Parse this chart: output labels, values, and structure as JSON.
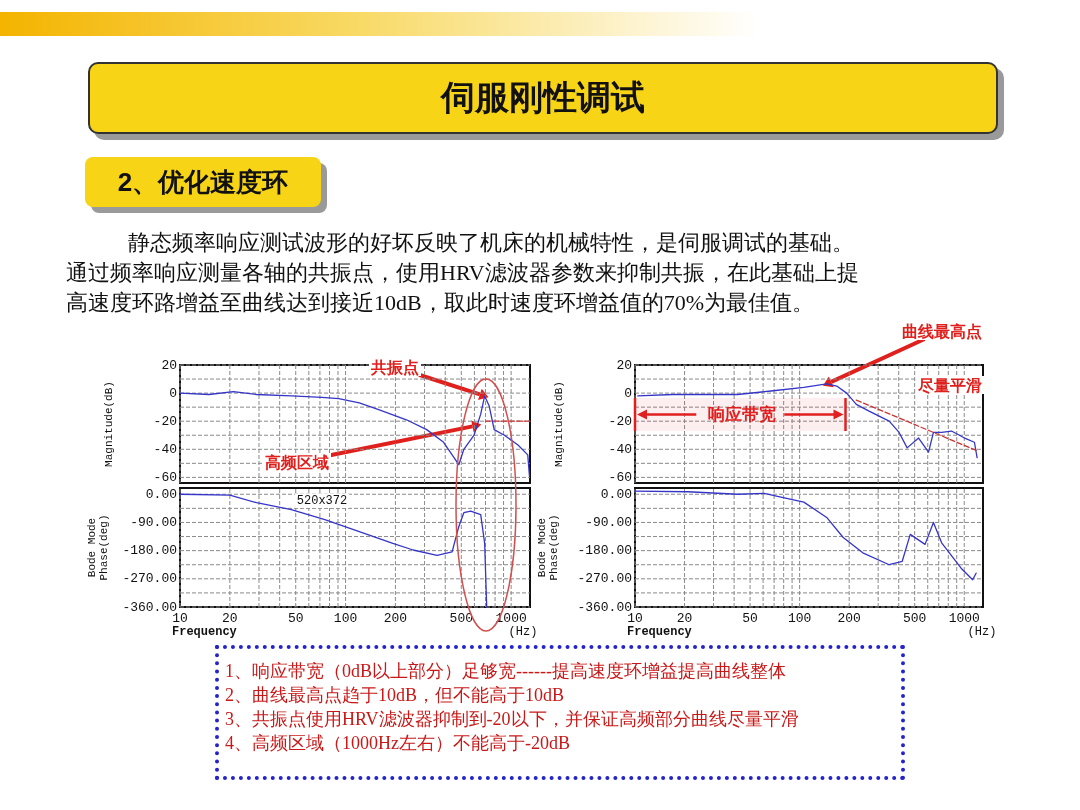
{
  "chart_data": [
    {
      "type": "other",
      "title": "伺服刚性调试",
      "subtitle": "2、优化速度环",
      "annotations": [
        "静态频率响应测试波形的好坏反映了机床的机械特性，是伺服调试的基础。",
        "通过频率响应测量各轴的共振点，使用HRV滤波器参数来抑制共振，在此基础上提",
        "高速度环路增益至曲线达到接近10dB，取此时速度环增益值的70%为最佳值。"
      ]
    },
    {
      "type": "line",
      "ylabel": "Magnitude(dB)",
      "log": "x",
      "grid": true,
      "marker": "none",
      "tick_labels": "y",
      "xlim": [
        10,
        1300
      ],
      "ylim": [
        -64,
        20
      ],
      "xticks": [
        10,
        20,
        {
          "value": 30,
          "label": null
        },
        {
          "value": 40,
          "label": null
        },
        50,
        {
          "value": 60,
          "label": null
        },
        {
          "value": 70,
          "label": null
        },
        {
          "value": 80,
          "label": null
        },
        {
          "value": 90,
          "label": null
        },
        100,
        200,
        {
          "value": 300,
          "label": null
        },
        {
          "value": 400,
          "label": null
        },
        500,
        {
          "value": 600,
          "label": null
        },
        {
          "value": 700,
          "label": null
        },
        {
          "value": 800,
          "label": null
        },
        {
          "value": 900,
          "label": null
        },
        1000
      ],
      "yticks": [
        -60,
        {
          "value": -50,
          "label": null
        },
        -40,
        {
          "value": -30,
          "label": null
        },
        -20,
        {
          "value": -10,
          "label": null
        },
        0,
        {
          "value": 10,
          "label": null
        },
        20
      ],
      "x": [
        10,
        15,
        21,
        29,
        47,
        72,
        91,
        121,
        160,
        233,
        309,
        391,
        483,
        518,
        597,
        655,
        692,
        736,
        790,
        910,
        1100,
        1260,
        1290
      ],
      "series": [
        {
          "color": "#3535c8",
          "values": [
            0,
            -1,
            1,
            -1,
            -2,
            -3,
            -4,
            -7,
            -12,
            -19,
            -26,
            -35,
            -51,
            -40,
            -30,
            -15,
            -2,
            -9,
            -26,
            -30,
            -37,
            -44,
            -59
          ]
        },
        {
          "type": "line",
          "color": "#cc3333",
          "line_style": "dashed",
          "x": [
            703,
            1300
          ],
          "values": [
            -20,
            -20
          ]
        }
      ],
      "annotations": [
        {
          "text": "共振点",
          "x": 692,
          "y": -2
        },
        {
          "text": "高频区域",
          "x": 625,
          "y": -23
        }
      ]
    },
    {
      "type": "line",
      "ylabel": "Bode Mode\nPhase(deg)",
      "xlabel": "Frequency",
      "log": "x",
      "grid": true,
      "marker": "none",
      "xlim": [
        10,
        1300
      ],
      "ylim": [
        -360,
        20
      ],
      "xticks": [
        10,
        20,
        {
          "value": 30,
          "label": null
        },
        {
          "value": 40,
          "label": null
        },
        50,
        {
          "value": 60,
          "label": null
        },
        {
          "value": 70,
          "label": null
        },
        {
          "value": 80,
          "label": null
        },
        {
          "value": 90,
          "label": null
        },
        100,
        200,
        {
          "value": 300,
          "label": null
        },
        {
          "value": 400,
          "label": null
        },
        500,
        {
          "value": 600,
          "label": null
        },
        {
          "value": 700,
          "label": null
        },
        {
          "value": 800,
          "label": null
        },
        {
          "value": 900,
          "label": null
        },
        1000
      ],
      "yticks": [
        {
          "value": -360,
          "label": "-360.00"
        },
        {
          "value": -315,
          "label": null
        },
        {
          "value": -270,
          "label": "-270.00"
        },
        {
          "value": -225,
          "label": null
        },
        {
          "value": -180,
          "label": "-180.00"
        },
        {
          "value": -135,
          "label": null
        },
        {
          "value": -90,
          "label": "-90.00"
        },
        {
          "value": -45,
          "label": null
        },
        {
          "value": 0,
          "label": "0.00"
        }
      ],
      "x": [
        10,
        20,
        29,
        47,
        75,
        121,
        193,
        256,
        357,
        440,
        483,
        518,
        570,
        655,
        692,
        712
      ],
      "series": [
        {
          "color": "#3535c8",
          "values": [
            0,
            -3,
            -27,
            -49,
            -81,
            -119,
            -157,
            -178,
            -195,
            -184,
            -103,
            -59,
            -54,
            -65,
            -157,
            -360
          ]
        }
      ],
      "annotations": [
        "520x372",
        "(Hz)"
      ]
    },
    {
      "type": "line",
      "ylabel": "Magnitude(dB)",
      "log": "x",
      "grid": true,
      "marker": "none",
      "tick_labels": "y",
      "xlim": [
        10,
        1300
      ],
      "ylim": [
        -64,
        20
      ],
      "xticks": [
        10,
        20,
        {
          "value": 30,
          "label": null
        },
        {
          "value": 40,
          "label": null
        },
        50,
        {
          "value": 60,
          "label": null
        },
        {
          "value": 70,
          "label": null
        },
        {
          "value": 80,
          "label": null
        },
        {
          "value": 90,
          "label": null
        },
        100,
        200,
        {
          "value": 300,
          "label": null
        },
        {
          "value": 400,
          "label": null
        },
        500,
        {
          "value": 600,
          "label": null
        },
        {
          "value": 700,
          "label": null
        },
        {
          "value": 800,
          "label": null
        },
        {
          "value": 900,
          "label": null
        },
        1000
      ],
      "yticks": [
        -60,
        {
          "value": -50,
          "label": null
        },
        -40,
        {
          "value": -30,
          "label": null
        },
        -20,
        {
          "value": -10,
          "label": null
        },
        0,
        {
          "value": 10,
          "label": null
        },
        20
      ],
      "x": [
        10.4,
        17,
        42,
        67,
        106,
        146,
        168,
        193,
        221,
        266,
        350,
        402,
        450,
        528,
        607,
        650,
        729,
        836,
        1005,
        1153,
        1197
      ],
      "series": [
        {
          "color": "#3535c8",
          "values": [
            -2,
            -1,
            -1,
            1.5,
            4,
            6.5,
            5,
            0,
            -8,
            -13,
            -20,
            -28,
            -39,
            -32,
            -42,
            -28,
            -28,
            -27,
            -32,
            -35,
            -46
          ]
        },
        {
          "type": "line",
          "color": "#cc3333",
          "line_style": "dashed",
          "x": [
            221,
            1197
          ],
          "values": [
            -5,
            -41
          ]
        }
      ],
      "bands": [
        {
          "axis": "x",
          "from": 10,
          "to": 190,
          "label": "响应带宽",
          "color": "#e02020"
        }
      ],
      "annotations": [
        {
          "text": "曲线最高点",
          "x": 146,
          "y": 6.5
        },
        "尽量平滑"
      ]
    },
    {
      "type": "line",
      "ylabel": "Bode Mode\nPhase(deg)",
      "xlabel": "Frequency",
      "log": "x",
      "grid": true,
      "marker": "none",
      "xlim": [
        10,
        1300
      ],
      "ylim": [
        -360,
        20
      ],
      "xticks": [
        10,
        20,
        {
          "value": 30,
          "label": null
        },
        {
          "value": 40,
          "label": null
        },
        50,
        {
          "value": 60,
          "label": null
        },
        {
          "value": 70,
          "label": null
        },
        {
          "value": 80,
          "label": null
        },
        {
          "value": 90,
          "label": null
        },
        100,
        200,
        {
          "value": 300,
          "label": null
        },
        {
          "value": 400,
          "label": null
        },
        500,
        {
          "value": 600,
          "label": null
        },
        {
          "value": 700,
          "label": null
        },
        {
          "value": 800,
          "label": null
        },
        {
          "value": 900,
          "label": null
        },
        1000
      ],
      "yticks": [
        {
          "value": -360,
          "label": "-360.00"
        },
        {
          "value": -315,
          "label": null
        },
        {
          "value": -270,
          "label": "-270.00"
        },
        {
          "value": -225,
          "label": null
        },
        {
          "value": -180,
          "label": "-180.00"
        },
        {
          "value": -135,
          "label": null
        },
        {
          "value": -90,
          "label": "-90.00"
        },
        {
          "value": -45,
          "label": null
        },
        {
          "value": 0,
          "label": "0.00"
        }
      ],
      "x": [
        10,
        21,
        42,
        61,
        77,
        106,
        146,
        184,
        242,
        350,
        420,
        470,
        578,
        650,
        729,
        957,
        1125,
        1180
      ],
      "series": [
        {
          "color": "#3535c8",
          "values": [
            10,
            8,
            0,
            3,
            -9,
            -25,
            -74,
            -138,
            -187,
            -225,
            -214,
            -128,
            -160,
            -90,
            -155,
            -236,
            -273,
            -252
          ]
        }
      ],
      "annotations": [
        "(Hz)"
      ]
    },
    {
      "type": "other",
      "annotations": [
        "1、响应带宽（0dB以上部分）足够宽------提高速度环增益提高曲线整体",
        "2、曲线最高点趋于10dB，但不能高于10dB",
        "3、共振点使用HRV滤波器抑制到-20以下，并保证高频部分曲线尽量平滑",
        "4、高频区域（1000Hz左右）不能高于-20dB"
      ]
    }
  ]
}
